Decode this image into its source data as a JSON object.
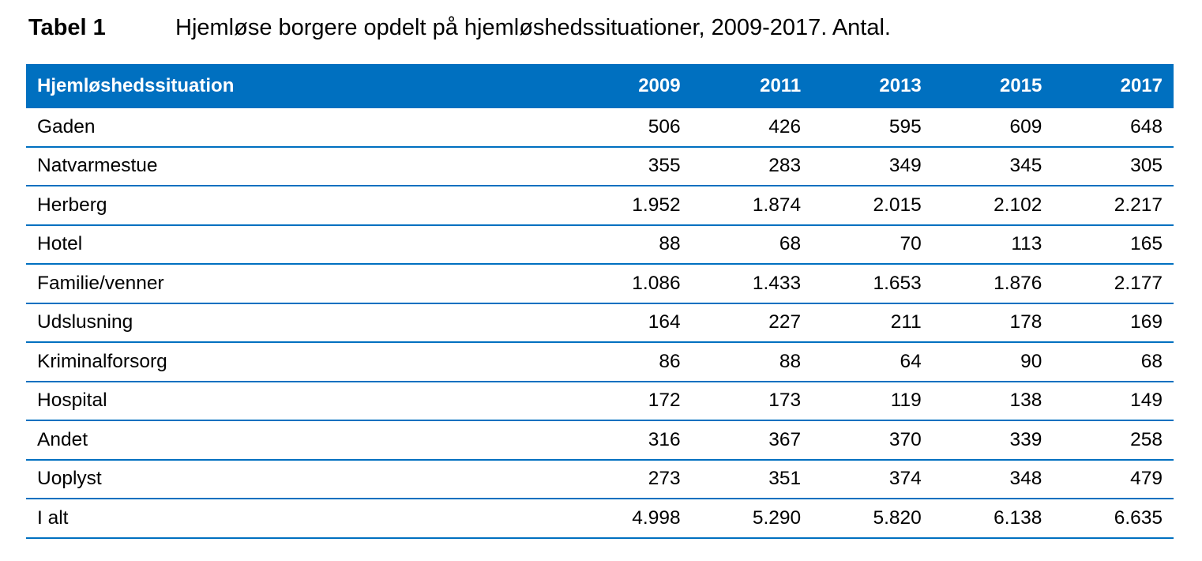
{
  "caption": {
    "label": "Tabel 1",
    "text": "Hjemløse borgere opdelt på hjemløshedssituationer, 2009-2017. Antal."
  },
  "table": {
    "header": {
      "label": "Hjemløshedssituation",
      "years": [
        "2009",
        "2011",
        "2013",
        "2015",
        "2017"
      ]
    },
    "rows": [
      {
        "label": "Gaden",
        "values": [
          "506",
          "426",
          "595",
          "609",
          "648"
        ]
      },
      {
        "label": "Natvarmestue",
        "values": [
          "355",
          "283",
          "349",
          "345",
          "305"
        ]
      },
      {
        "label": "Herberg",
        "values": [
          "1.952",
          "1.874",
          "2.015",
          "2.102",
          "2.217"
        ]
      },
      {
        "label": "Hotel",
        "values": [
          "88",
          "68",
          "70",
          "113",
          "165"
        ]
      },
      {
        "label": "Familie/venner",
        "values": [
          "1.086",
          "1.433",
          "1.653",
          "1.876",
          "2.177"
        ]
      },
      {
        "label": "Udslusning",
        "values": [
          "164",
          "227",
          "211",
          "178",
          "169"
        ]
      },
      {
        "label": "Kriminalforsorg",
        "values": [
          "86",
          "88",
          "64",
          "90",
          "68"
        ]
      },
      {
        "label": "Hospital",
        "values": [
          "172",
          "173",
          "119",
          "138",
          "149"
        ]
      },
      {
        "label": "Andet",
        "values": [
          "316",
          "367",
          "370",
          "339",
          "258"
        ]
      },
      {
        "label": "Uoplyst",
        "values": [
          "273",
          "351",
          "374",
          "348",
          "479"
        ]
      },
      {
        "label": "I alt",
        "values": [
          "4.998",
          "5.290",
          "5.820",
          "6.138",
          "6.635"
        ]
      }
    ]
  },
  "colors": {
    "header_background": "#0070c0",
    "header_text": "#ffffff",
    "row_divider": "#0070c0"
  }
}
